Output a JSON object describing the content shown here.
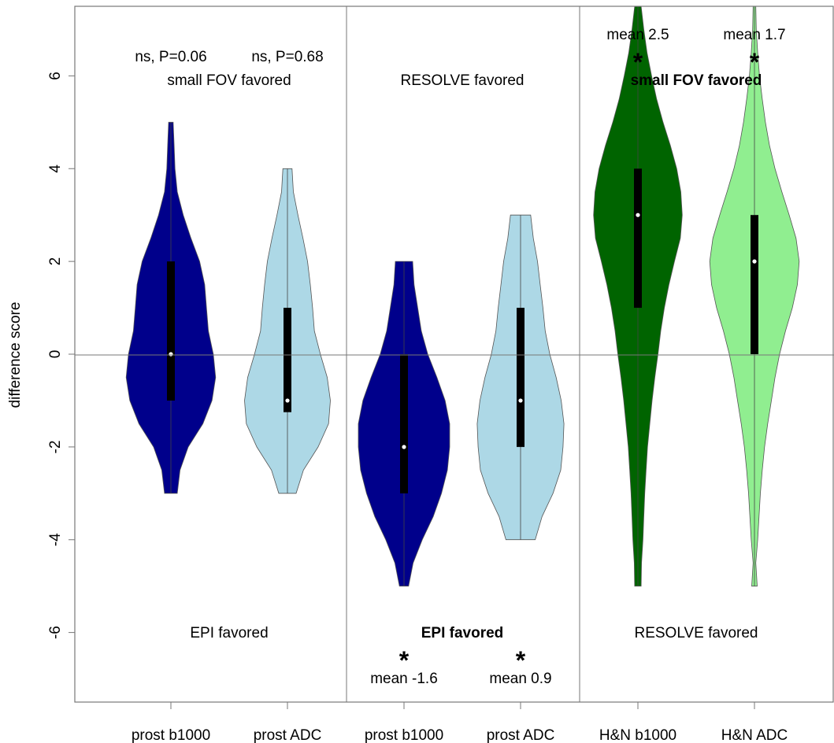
{
  "chart_data": {
    "type": "violin",
    "ylabel": "difference score",
    "ylim": [
      -7.5,
      7.5
    ],
    "yticks": [
      -6,
      -4,
      -2,
      0,
      2,
      4,
      6
    ],
    "reference_line": 0,
    "categories": [
      "prost b1000",
      "prost ADC",
      "prost b1000",
      "prost ADC",
      "H&N b1000",
      "H&N ADC"
    ],
    "violins": [
      {
        "category": "prost b1000",
        "color": "#00008B",
        "min": -3,
        "max": 5,
        "q1": -1,
        "q3": 2,
        "median": 0,
        "profile": [
          [
            -3,
            0.14
          ],
          [
            -2.5,
            0.2
          ],
          [
            -2,
            0.38
          ],
          [
            -1.5,
            0.7
          ],
          [
            -1,
            0.9
          ],
          [
            -0.5,
            0.98
          ],
          [
            0,
            0.93
          ],
          [
            0.5,
            0.82
          ],
          [
            1,
            0.78
          ],
          [
            1.5,
            0.74
          ],
          [
            2,
            0.63
          ],
          [
            2.5,
            0.44
          ],
          [
            3,
            0.27
          ],
          [
            3.5,
            0.14
          ],
          [
            4,
            0.09
          ],
          [
            4.5,
            0.07
          ],
          [
            5,
            0.05
          ]
        ]
      },
      {
        "category": "prost ADC",
        "color": "#ADD8E6",
        "min": -3,
        "max": 4,
        "q1": -1.25,
        "q3": 1,
        "median": -1,
        "profile": [
          [
            -3,
            0.19
          ],
          [
            -2.5,
            0.35
          ],
          [
            -2,
            0.67
          ],
          [
            -1.5,
            0.9
          ],
          [
            -1,
            0.94
          ],
          [
            -0.5,
            0.87
          ],
          [
            0,
            0.72
          ],
          [
            0.5,
            0.59
          ],
          [
            1,
            0.55
          ],
          [
            1.5,
            0.5
          ],
          [
            2,
            0.44
          ],
          [
            2.5,
            0.34
          ],
          [
            3,
            0.23
          ],
          [
            3.5,
            0.13
          ],
          [
            4,
            0.1
          ]
        ]
      },
      {
        "category": "prost b1000",
        "color": "#00008B",
        "min": -5,
        "max": 2,
        "q1": -3,
        "q3": 0,
        "median": -2,
        "profile": [
          [
            -5,
            0.1
          ],
          [
            -4.5,
            0.2
          ],
          [
            -4,
            0.4
          ],
          [
            -3.5,
            0.64
          ],
          [
            -3,
            0.82
          ],
          [
            -2.5,
            0.95
          ],
          [
            -2,
            1
          ],
          [
            -1.5,
            1
          ],
          [
            -1,
            0.9
          ],
          [
            -0.5,
            0.72
          ],
          [
            0,
            0.52
          ],
          [
            0.5,
            0.38
          ],
          [
            1,
            0.3
          ],
          [
            1.5,
            0.22
          ],
          [
            2,
            0.19
          ]
        ]
      },
      {
        "category": "prost ADC",
        "color": "#ADD8E6",
        "min": -4,
        "max": 3,
        "q1": -2,
        "q3": 1,
        "median": -1,
        "profile": [
          [
            -4,
            0.32
          ],
          [
            -3.5,
            0.47
          ],
          [
            -3,
            0.71
          ],
          [
            -2.5,
            0.88
          ],
          [
            -2,
            0.93
          ],
          [
            -1.5,
            0.95
          ],
          [
            -1,
            0.89
          ],
          [
            -0.5,
            0.78
          ],
          [
            0,
            0.64
          ],
          [
            0.5,
            0.54
          ],
          [
            1,
            0.49
          ],
          [
            1.5,
            0.43
          ],
          [
            2,
            0.37
          ],
          [
            2.5,
            0.28
          ],
          [
            3,
            0.22
          ]
        ]
      },
      {
        "category": "H&N b1000",
        "color": "#006400",
        "min": -5,
        "max": 7.5,
        "q1": 1,
        "q3": 4,
        "median": 3,
        "profile": [
          [
            -5,
            0.07
          ],
          [
            -4.5,
            0.08
          ],
          [
            -4,
            0.11
          ],
          [
            -3.5,
            0.13
          ],
          [
            -3,
            0.15
          ],
          [
            -2.5,
            0.18
          ],
          [
            -2,
            0.21
          ],
          [
            -1.5,
            0.26
          ],
          [
            -1,
            0.31
          ],
          [
            -0.5,
            0.37
          ],
          [
            0,
            0.44
          ],
          [
            0.5,
            0.5
          ],
          [
            1,
            0.58
          ],
          [
            1.5,
            0.68
          ],
          [
            2,
            0.8
          ],
          [
            2.5,
            0.93
          ],
          [
            3,
            0.97
          ],
          [
            3.5,
            0.94
          ],
          [
            4,
            0.85
          ],
          [
            4.5,
            0.71
          ],
          [
            5,
            0.55
          ],
          [
            5.5,
            0.41
          ],
          [
            6,
            0.3
          ],
          [
            6.5,
            0.2
          ],
          [
            7,
            0.13
          ],
          [
            7.5,
            0.07
          ]
        ]
      },
      {
        "category": "H&N ADC",
        "color": "#90EE90",
        "min": -5,
        "max": 7.5,
        "q1": 0,
        "q3": 3,
        "median": 2,
        "profile": [
          [
            -5,
            0.06
          ],
          [
            -4.5,
            0.03
          ],
          [
            -4,
            0.07
          ],
          [
            -3.5,
            0.1
          ],
          [
            -3,
            0.13
          ],
          [
            -2.5,
            0.17
          ],
          [
            -2,
            0.22
          ],
          [
            -1.5,
            0.29
          ],
          [
            -1,
            0.37
          ],
          [
            -0.5,
            0.45
          ],
          [
            0,
            0.55
          ],
          [
            0.5,
            0.68
          ],
          [
            1,
            0.83
          ],
          [
            1.5,
            0.94
          ],
          [
            2,
            0.98
          ],
          [
            2.5,
            0.91
          ],
          [
            3,
            0.76
          ],
          [
            3.5,
            0.6
          ],
          [
            4,
            0.45
          ],
          [
            4.5,
            0.33
          ],
          [
            5,
            0.24
          ],
          [
            5.5,
            0.17
          ],
          [
            6,
            0.11
          ],
          [
            6.5,
            0.07
          ],
          [
            7,
            0.04
          ],
          [
            7.5,
            0.03
          ]
        ]
      }
    ],
    "annotations": {
      "prost_top_left_stat": "ns, P=0.06",
      "prost_top_right_stat": "ns, P=0.68",
      "panel1_top": "small FOV favored",
      "panel1_bottom": "EPI favored",
      "panel2_top": "RESOLVE favored",
      "panel2_bottom": "EPI favored",
      "panel2_star_1": "*",
      "panel2_star_2": "*",
      "panel2_mean_1": "mean -1.6",
      "panel2_mean_2": "mean 0.9",
      "panel3_mean_1": "mean 2.5",
      "panel3_mean_2": "mean 1.7",
      "panel3_star_1": "*",
      "panel3_star_2": "*",
      "panel3_top": "small FOV favored",
      "panel3_bottom": "RESOLVE favored"
    }
  }
}
